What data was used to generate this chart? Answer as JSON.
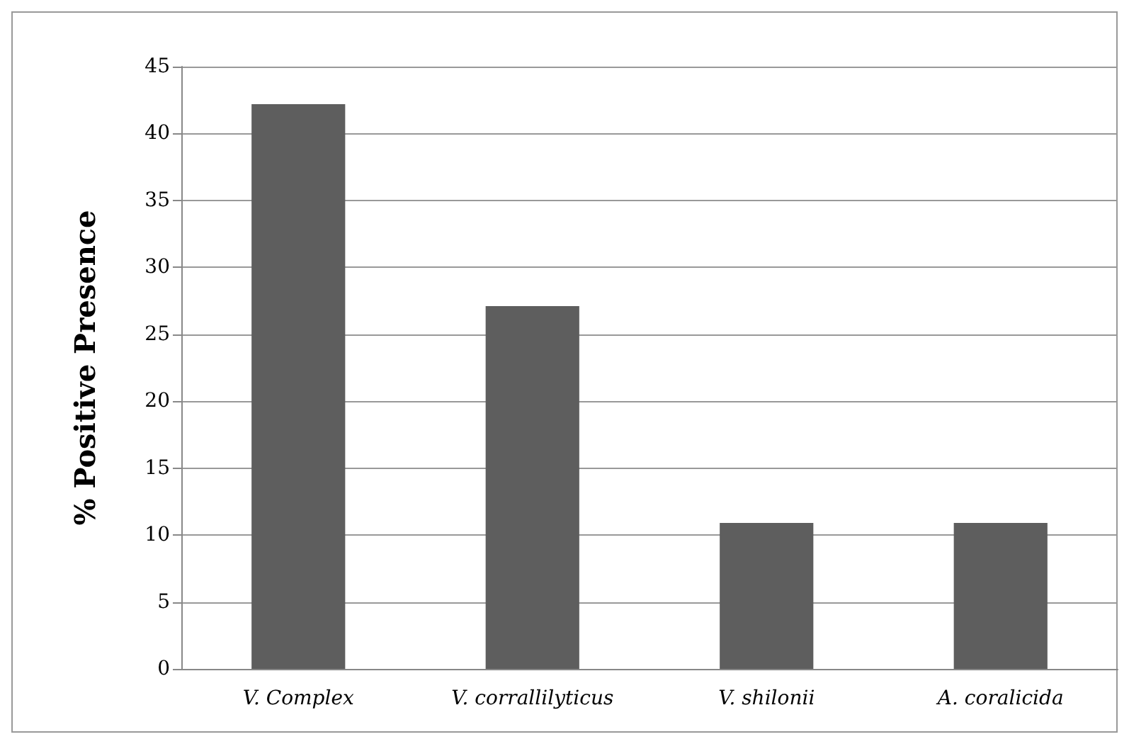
{
  "chart_data": {
    "type": "bar",
    "ylabel": "% Positive Presence",
    "categories": [
      "V. Complex",
      "V. corrallilyticus",
      "V. shilonii",
      "A. coralicida"
    ],
    "values": [
      42.2,
      27.1,
      10.9,
      10.9
    ],
    "color": "#5e5e5e",
    "ylim": [
      0,
      45
    ],
    "yticks": [
      0,
      5,
      10,
      15,
      20,
      25,
      30,
      35,
      40,
      45
    ],
    "grid": "y"
  }
}
